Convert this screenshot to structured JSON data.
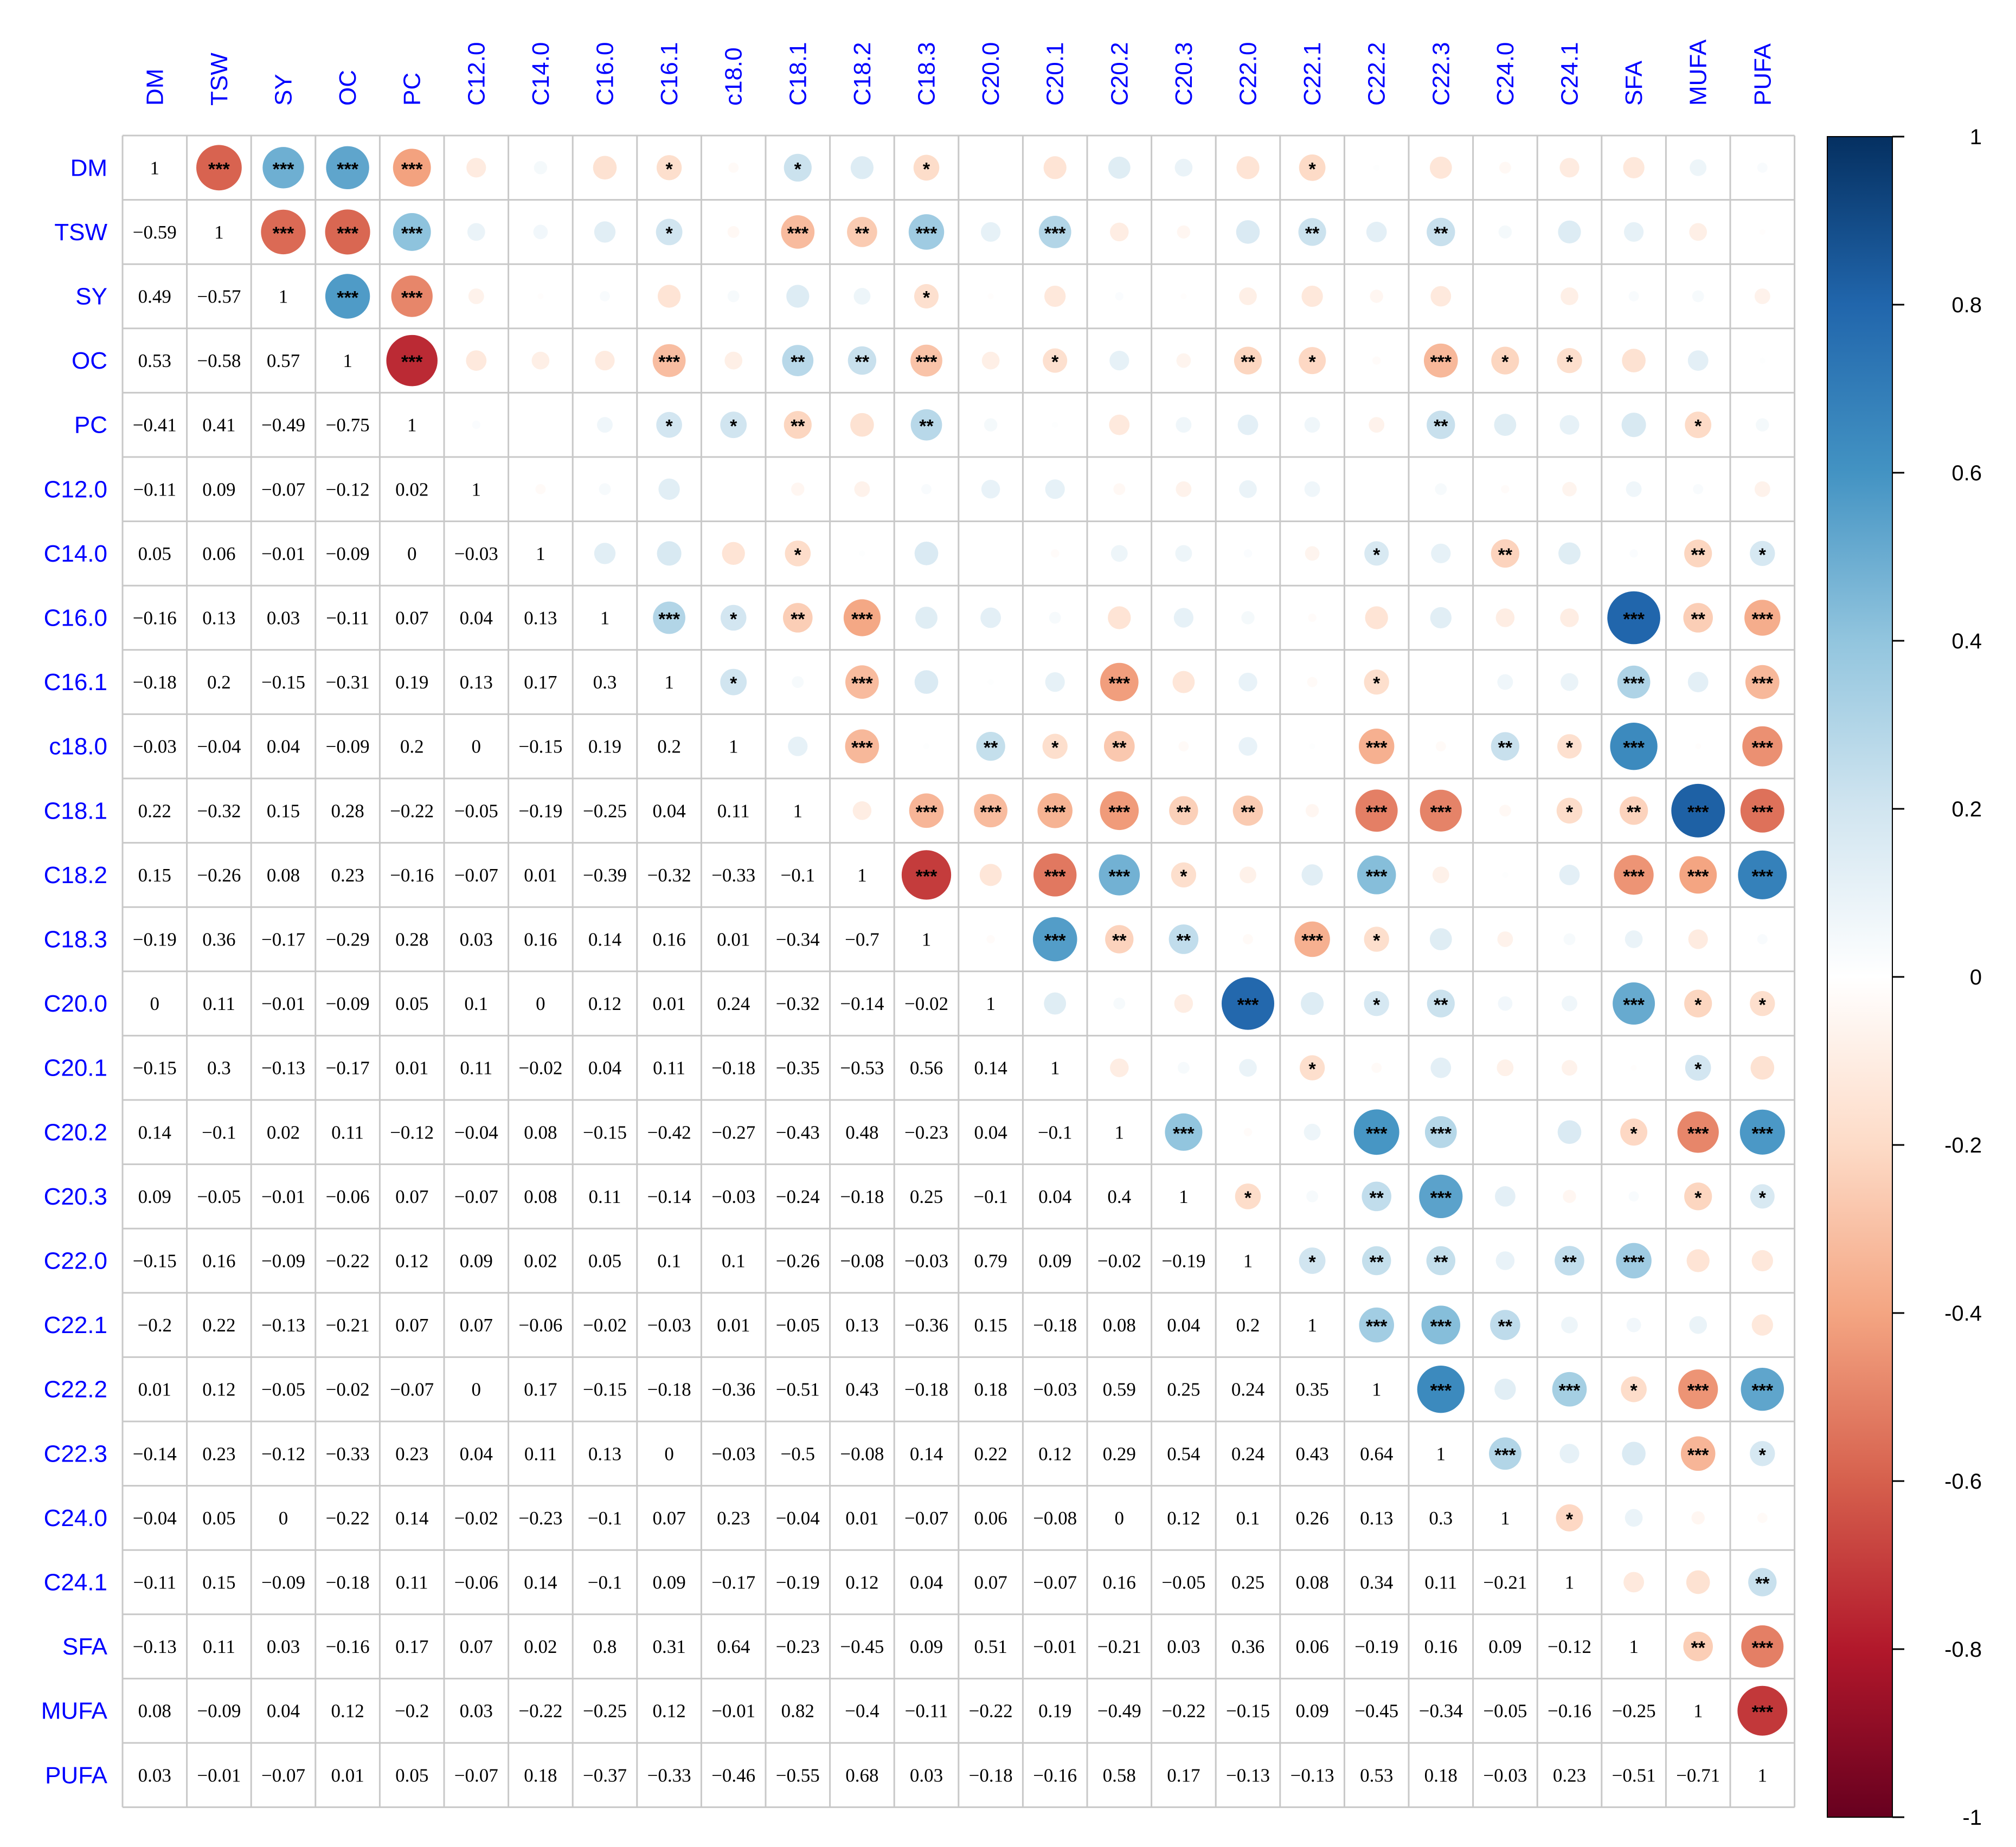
{
  "chart_data": {
    "type": "heatmap",
    "subtype": "correlation-matrix (upper: circles + significance stars, lower: numbers)",
    "variables": [
      "DM",
      "TSW",
      "SY",
      "OC",
      "PC",
      "C12.0",
      "C14.0",
      "C16.0",
      "C16.1",
      "c18.0",
      "C18.1",
      "C18.2",
      "C18.3",
      "C20.0",
      "C20.1",
      "C20.2",
      "C20.3",
      "C22.0",
      "C22.1",
      "C22.2",
      "C22.3",
      "C24.0",
      "C24.1",
      "SFA",
      "MUFA",
      "PUFA"
    ],
    "lower_values": [
      [
        1
      ],
      [
        -0.59,
        1
      ],
      [
        0.49,
        -0.57,
        1
      ],
      [
        0.53,
        -0.58,
        0.57,
        1
      ],
      [
        -0.41,
        0.41,
        -0.49,
        -0.75,
        1
      ],
      [
        -0.11,
        0.09,
        -0.07,
        -0.12,
        0.02,
        1
      ],
      [
        0.05,
        0.06,
        -0.01,
        -0.09,
        0,
        -0.03,
        1
      ],
      [
        -0.16,
        0.13,
        0.03,
        -0.11,
        0.07,
        0.04,
        0.13,
        1
      ],
      [
        -0.18,
        0.2,
        -0.15,
        -0.31,
        0.19,
        0.13,
        0.17,
        0.3,
        1
      ],
      [
        -0.03,
        -0.04,
        0.04,
        -0.09,
        0.2,
        0,
        -0.15,
        0.19,
        0.2,
        1
      ],
      [
        0.22,
        -0.32,
        0.15,
        0.28,
        -0.22,
        -0.05,
        -0.19,
        -0.25,
        0.04,
        0.11,
        1
      ],
      [
        0.15,
        -0.26,
        0.08,
        0.23,
        -0.16,
        -0.07,
        0.01,
        -0.39,
        -0.32,
        -0.33,
        -0.1,
        1
      ],
      [
        -0.19,
        0.36,
        -0.17,
        -0.29,
        0.28,
        0.03,
        0.16,
        0.14,
        0.16,
        0.01,
        -0.34,
        -0.7,
        1
      ],
      [
        0,
        0.11,
        -0.01,
        -0.09,
        0.05,
        0.1,
        0,
        0.12,
        0.01,
        0.24,
        -0.32,
        -0.14,
        -0.02,
        1
      ],
      [
        -0.15,
        0.3,
        -0.13,
        -0.17,
        0.01,
        0.11,
        -0.02,
        0.04,
        0.11,
        -0.18,
        -0.35,
        -0.53,
        0.56,
        0.14,
        1
      ],
      [
        0.14,
        -0.1,
        0.02,
        0.11,
        -0.12,
        -0.04,
        0.08,
        -0.15,
        -0.42,
        -0.27,
        -0.43,
        0.48,
        -0.23,
        0.04,
        -0.1,
        1
      ],
      [
        0.09,
        -0.05,
        -0.01,
        -0.06,
        0.07,
        -0.07,
        0.08,
        0.11,
        -0.14,
        -0.03,
        -0.24,
        -0.18,
        0.25,
        -0.1,
        0.04,
        0.4,
        1
      ],
      [
        -0.15,
        0.16,
        -0.09,
        -0.22,
        0.12,
        0.09,
        0.02,
        0.05,
        0.1,
        0.1,
        -0.26,
        -0.08,
        -0.03,
        0.79,
        0.09,
        -0.02,
        -0.19,
        1
      ],
      [
        -0.2,
        0.22,
        -0.13,
        -0.21,
        0.07,
        0.07,
        -0.06,
        -0.02,
        -0.03,
        0.01,
        -0.05,
        0.13,
        -0.36,
        0.15,
        -0.18,
        0.08,
        0.04,
        0.2,
        1
      ],
      [
        0.01,
        0.12,
        -0.05,
        -0.02,
        -0.07,
        0,
        0.17,
        -0.15,
        -0.18,
        -0.36,
        -0.51,
        0.43,
        -0.18,
        0.18,
        -0.03,
        0.59,
        0.25,
        0.24,
        0.35,
        1
      ],
      [
        -0.14,
        0.23,
        -0.12,
        -0.33,
        0.23,
        0.04,
        0.11,
        0.13,
        0,
        -0.03,
        -0.5,
        -0.08,
        0.14,
        0.22,
        0.12,
        0.29,
        0.54,
        0.24,
        0.43,
        0.64,
        1
      ],
      [
        -0.04,
        0.05,
        0,
        -0.22,
        0.14,
        -0.02,
        -0.23,
        -0.1,
        0.07,
        0.23,
        -0.04,
        0.01,
        -0.07,
        0.06,
        -0.08,
        0,
        0.12,
        0.1,
        0.26,
        0.13,
        0.3,
        1
      ],
      [
        -0.11,
        0.15,
        -0.09,
        -0.18,
        0.11,
        -0.06,
        0.14,
        -0.1,
        0.09,
        -0.17,
        -0.19,
        0.12,
        0.04,
        0.07,
        -0.07,
        0.16,
        -0.05,
        0.25,
        0.08,
        0.34,
        0.11,
        -0.21,
        1
      ],
      [
        -0.13,
        0.11,
        0.03,
        -0.16,
        0.17,
        0.07,
        0.02,
        0.8,
        0.31,
        0.64,
        -0.23,
        -0.45,
        0.09,
        0.51,
        -0.01,
        -0.21,
        0.03,
        0.36,
        0.06,
        -0.19,
        0.16,
        0.09,
        -0.12,
        1
      ],
      [
        0.08,
        -0.09,
        0.04,
        0.12,
        -0.2,
        0.03,
        -0.22,
        -0.25,
        0.12,
        -0.01,
        0.82,
        -0.4,
        -0.11,
        -0.22,
        0.19,
        -0.49,
        -0.22,
        -0.15,
        0.09,
        -0.45,
        -0.34,
        -0.05,
        -0.16,
        -0.25,
        1
      ],
      [
        0.03,
        -0.01,
        -0.07,
        0.01,
        0.05,
        -0.07,
        0.18,
        -0.37,
        -0.33,
        -0.46,
        -0.55,
        0.68,
        0.03,
        -0.18,
        -0.16,
        0.58,
        0.17,
        -0.13,
        -0.13,
        0.53,
        0.18,
        -0.03,
        0.23,
        -0.51,
        -0.71,
        1
      ]
    ],
    "significance_upper": [
      [
        "1",
        "***",
        "***",
        "***",
        "***",
        "",
        "",
        "",
        "*",
        "",
        "*",
        "",
        "*",
        "",
        "",
        "",
        "",
        "",
        "*",
        "",
        "",
        "",
        "",
        "",
        "",
        ""
      ],
      [
        "",
        "1",
        "***",
        "***",
        "***",
        "",
        "",
        "",
        "*",
        "",
        "***",
        "**",
        "***",
        "",
        "***",
        "",
        "",
        "",
        "**",
        "",
        "**",
        "",
        "",
        "",
        "",
        ""
      ],
      [
        "",
        "",
        "1",
        "***",
        "***",
        "",
        "",
        "",
        "",
        "",
        "",
        "",
        "*",
        "",
        "",
        "",
        "",
        "",
        "",
        "",
        "",
        "",
        "",
        "",
        "",
        ""
      ],
      [
        "",
        "",
        "",
        "1",
        "***",
        "",
        "",
        "",
        "***",
        "",
        "**",
        "**",
        "***",
        "",
        "*",
        "",
        "",
        "**",
        "*",
        "",
        "***",
        "*",
        "*",
        "",
        "",
        ""
      ],
      [
        "",
        "",
        "",
        "",
        "1",
        "",
        "",
        "",
        "*",
        "*",
        "**",
        "",
        "**",
        "",
        "",
        "",
        "",
        "",
        "",
        "",
        "**",
        "",
        "",
        "",
        "*",
        ""
      ],
      [
        "",
        "",
        "",
        "",
        "",
        "1",
        "",
        "",
        "",
        "",
        "",
        "",
        "",
        "",
        "",
        "",
        "",
        "",
        "",
        "",
        "",
        "",
        "",
        "",
        "",
        ""
      ],
      [
        "",
        "",
        "",
        "",
        "",
        "",
        "1",
        "",
        "",
        "",
        "*",
        "",
        "",
        "",
        "",
        "",
        "",
        "",
        "",
        "*",
        "",
        "**",
        "",
        "",
        "**",
        "*"
      ],
      [
        "",
        "",
        "",
        "",
        "",
        "",
        "",
        "1",
        "***",
        "*",
        "**",
        "***",
        "",
        "",
        "",
        "",
        "",
        "",
        "",
        "",
        "",
        "",
        "",
        "***",
        "**",
        "***"
      ],
      [
        "",
        "",
        "",
        "",
        "",
        "",
        "",
        "",
        "1",
        "*",
        "",
        "***",
        "",
        "",
        "",
        "***",
        "",
        "",
        "",
        "*",
        "",
        "",
        "",
        "***",
        "",
        "***"
      ],
      [
        "",
        "",
        "",
        "",
        "",
        "",
        "",
        "",
        "",
        "1",
        "",
        "***",
        "",
        "**",
        "*",
        "**",
        "",
        "",
        "",
        "***",
        "",
        "**",
        "*",
        "***",
        "",
        "***"
      ],
      [
        "",
        "",
        "",
        "",
        "",
        "",
        "",
        "",
        "",
        "",
        "1",
        "",
        "***",
        "***",
        "***",
        "***",
        "**",
        "**",
        "",
        "***",
        "***",
        "",
        "*",
        "**",
        "***",
        "***"
      ],
      [
        "",
        "",
        "",
        "",
        "",
        "",
        "",
        "",
        "",
        "",
        "",
        "1",
        "***",
        "",
        "***",
        "***",
        "*",
        "",
        "",
        "***",
        "",
        "",
        "",
        "***",
        "***",
        "***"
      ],
      [
        "",
        "",
        "",
        "",
        "",
        "",
        "",
        "",
        "",
        "",
        "",
        "",
        "1",
        "",
        "***",
        "**",
        "**",
        "",
        "***",
        "*",
        "",
        "",
        "",
        "",
        "",
        ""
      ],
      [
        "",
        "",
        "",
        "",
        "",
        "",
        "",
        "",
        "",
        "",
        "",
        "",
        "",
        "1",
        "",
        "",
        "",
        "***",
        "",
        "*",
        "**",
        "",
        "",
        "***",
        "*",
        "*"
      ],
      [
        "",
        "",
        "",
        "",
        "",
        "",
        "",
        "",
        "",
        "",
        "",
        "",
        "",
        "",
        "1",
        "",
        "",
        "",
        "*",
        "",
        "",
        "",
        "",
        "",
        "*",
        ""
      ],
      [
        "",
        "",
        "",
        "",
        "",
        "",
        "",
        "",
        "",
        "",
        "",
        "",
        "",
        "",
        "",
        "1",
        "***",
        "",
        "",
        "***",
        "***",
        "",
        "",
        "*",
        "***",
        "***"
      ],
      [
        "",
        "",
        "",
        "",
        "",
        "",
        "",
        "",
        "",
        "",
        "",
        "",
        "",
        "",
        "",
        "",
        "1",
        "*",
        "",
        "**",
        "***",
        "",
        "",
        "",
        "*",
        "*"
      ],
      [
        "",
        "",
        "",
        "",
        "",
        "",
        "",
        "",
        "",
        "",
        "",
        "",
        "",
        "",
        "",
        "",
        "",
        "1",
        "*",
        "**",
        "**",
        "",
        "**",
        "***",
        "",
        ""
      ],
      [
        "",
        "",
        "",
        "",
        "",
        "",
        "",
        "",
        "",
        "",
        "",
        "",
        "",
        "",
        "",
        "",
        "",
        "",
        "1",
        "***",
        "***",
        "**",
        "",
        "",
        "",
        ""
      ],
      [
        "",
        "",
        "",
        "",
        "",
        "",
        "",
        "",
        "",
        "",
        "",
        "",
        "",
        "",
        "",
        "",
        "",
        "",
        "",
        "1",
        "***",
        "",
        "***",
        "*",
        "***",
        "***"
      ],
      [
        "",
        "",
        "",
        "",
        "",
        "",
        "",
        "",
        "",
        "",
        "",
        "",
        "",
        "",
        "",
        "",
        "",
        "",
        "",
        "",
        "1",
        "***",
        "",
        "",
        "***",
        "*"
      ],
      [
        "",
        "",
        "",
        "",
        "",
        "",
        "",
        "",
        "",
        "",
        "",
        "",
        "",
        "",
        "",
        "",
        "",
        "",
        "",
        "",
        "",
        "1",
        "*",
        "",
        "",
        ""
      ],
      [
        "",
        "",
        "",
        "",
        "",
        "",
        "",
        "",
        "",
        "",
        "",
        "",
        "",
        "",
        "",
        "",
        "",
        "",
        "",
        "",
        "",
        "",
        "1",
        "",
        "",
        "**"
      ],
      [
        "",
        "",
        "",
        "",
        "",
        "",
        "",
        "",
        "",
        "",
        "",
        "",
        "",
        "",
        "",
        "",
        "",
        "",
        "",
        "",
        "",
        "",
        "",
        "1",
        "**",
        "***"
      ],
      [
        "",
        "",
        "",
        "",
        "",
        "",
        "",
        "",
        "",
        "",
        "",
        "",
        "",
        "",
        "",
        "",
        "",
        "",
        "",
        "",
        "",
        "",
        "",
        "",
        "1",
        "***"
      ],
      [
        "",
        "",
        "",
        "",
        "",
        "",
        "",
        "",
        "",
        "",
        "",
        "",
        "",
        "",
        "",
        "",
        "",
        "",
        "",
        "",
        "",
        "",
        "",
        "",
        "",
        "1"
      ]
    ],
    "colorbar": {
      "range": [
        -1,
        1
      ],
      "ticks": [
        "1",
        "0.8",
        "0.6",
        "0.4",
        "0.2",
        "0",
        "-0.2",
        "-0.4",
        "-0.6",
        "-0.8",
        "-1"
      ],
      "colors": [
        "#67001f",
        "#b2182b",
        "#d6604d",
        "#f4a582",
        "#fddbc7",
        "#ffffff",
        "#d1e5f0",
        "#92c5de",
        "#4393c3",
        "#2166ac",
        "#053061"
      ]
    },
    "title": "",
    "xlabel": "",
    "ylabel": ""
  }
}
